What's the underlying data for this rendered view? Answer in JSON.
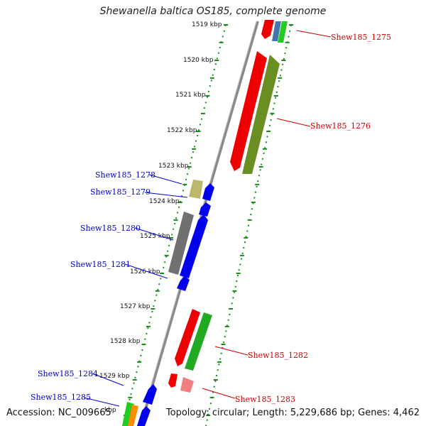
{
  "title": "Shewanella baltica OS185, complete genome",
  "footer": {
    "accession": "Accession: NC_009665",
    "summary": "Topology: circular; Length: 5,229,686 bp; Genes: 4,462"
  },
  "colors": {
    "forward_label": "#cc0000",
    "reverse_label": "#0000cc",
    "backbone": "#8a8a8a",
    "ticks": "#1a8a1a"
  },
  "ticks": [
    "1519 kbp",
    "1520 kbp",
    "1521 kbp",
    "1522 kbp",
    "1523 kbp",
    "1524 kbp",
    "1525 kbp",
    "1526 kbp",
    "1527 kbp",
    "1528 kbp",
    "1529 kbp",
    "kbp"
  ],
  "gene_labels": [
    {
      "id": "g1275",
      "text": "Shew185_1275",
      "strand": "forward"
    },
    {
      "id": "g1276",
      "text": "Shew185_1276",
      "strand": "forward"
    },
    {
      "id": "g1278",
      "text": "Shew185_1278",
      "strand": "reverse"
    },
    {
      "id": "g1279",
      "text": "Shew185_1279",
      "strand": "reverse"
    },
    {
      "id": "g1280",
      "text": "Shew185_1280",
      "strand": "reverse"
    },
    {
      "id": "g1281",
      "text": "Shew185_1281",
      "strand": "reverse"
    },
    {
      "id": "g1282",
      "text": "Shew185_1282",
      "strand": "forward"
    },
    {
      "id": "g1283",
      "text": "Shew185_1283",
      "strand": "forward"
    },
    {
      "id": "g1284",
      "text": "Shew185_1284",
      "strand": "reverse"
    },
    {
      "id": "g1285",
      "text": "Shew185_1285",
      "strand": "reverse"
    }
  ]
}
